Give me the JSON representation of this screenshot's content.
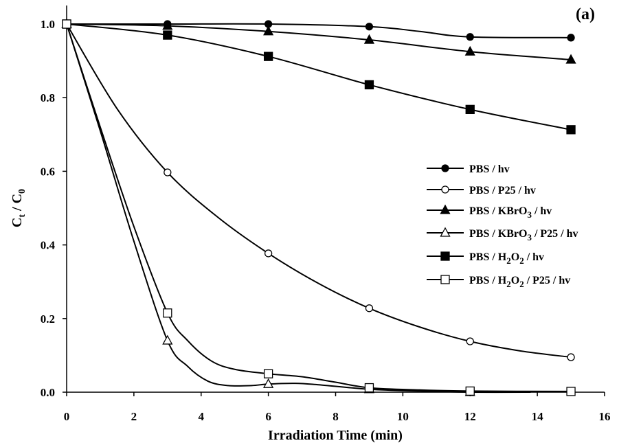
{
  "chart_data": {
    "type": "line",
    "panel_label": "(a)",
    "xlabel": "Irradiation Time (min)",
    "ylabel": {
      "main": "C",
      "sub1": "t",
      "sep": " / C",
      "sub2": "0"
    },
    "xlim": [
      0,
      16
    ],
    "ylim": [
      0.0,
      1.0
    ],
    "xticks": [
      0,
      2,
      4,
      6,
      8,
      10,
      12,
      14,
      16
    ],
    "yticks": [
      0.0,
      0.2,
      0.4,
      0.6,
      0.8,
      1.0
    ],
    "grid": false,
    "legend_position": "center-right",
    "series": [
      {
        "name": "PBS / hv",
        "legend_parts": [
          {
            "t": "PBS / hv"
          }
        ],
        "marker": "filled-circle",
        "x": [
          0,
          3,
          6,
          9,
          12,
          15
        ],
        "y": [
          1.0,
          1.0,
          1.0,
          0.993,
          0.965,
          0.963
        ],
        "curve": [
          [
            0,
            1.0
          ],
          [
            3,
            1.0
          ],
          [
            6,
            1.0
          ],
          [
            9,
            0.993
          ],
          [
            10.5,
            0.98
          ],
          [
            12,
            0.965
          ],
          [
            15,
            0.963
          ]
        ]
      },
      {
        "name": "PBS / P25 / hv",
        "legend_parts": [
          {
            "t": "PBS / P25 / hv"
          }
        ],
        "marker": "open-circle",
        "x": [
          0,
          3,
          6,
          9,
          12,
          15
        ],
        "y": [
          1.0,
          0.597,
          0.377,
          0.228,
          0.138,
          0.095
        ],
        "curve": [
          [
            0,
            1.0
          ],
          [
            1.5,
            0.77
          ],
          [
            3,
            0.597
          ],
          [
            4.5,
            0.475
          ],
          [
            6,
            0.377
          ],
          [
            7.5,
            0.295
          ],
          [
            9,
            0.228
          ],
          [
            10.5,
            0.177
          ],
          [
            12,
            0.138
          ],
          [
            13.5,
            0.112
          ],
          [
            15,
            0.095
          ]
        ]
      },
      {
        "name": "PBS / KBrO3 / hv",
        "legend_parts": [
          {
            "t": "PBS / KBrO"
          },
          {
            "t": "3",
            "sub": true
          },
          {
            "t": " / hv"
          }
        ],
        "marker": "filled-triangle",
        "x": [
          0,
          3,
          6,
          9,
          12,
          15
        ],
        "y": [
          1.0,
          0.995,
          0.98,
          0.957,
          0.925,
          0.903
        ],
        "curve": [
          [
            0,
            1.0
          ],
          [
            3,
            0.995
          ],
          [
            6,
            0.98
          ],
          [
            9,
            0.957
          ],
          [
            12,
            0.925
          ],
          [
            15,
            0.903
          ]
        ]
      },
      {
        "name": "PBS / KBrO3 / P25 / hv",
        "legend_parts": [
          {
            "t": "PBS / KBrO"
          },
          {
            "t": "3",
            "sub": true
          },
          {
            "t": " / P25 / hv"
          }
        ],
        "marker": "open-triangle",
        "x": [
          0,
          3,
          6,
          9,
          12
        ],
        "y": [
          1.0,
          0.14,
          0.022,
          0.008,
          0.0
        ],
        "curve": [
          [
            0,
            1.0
          ],
          [
            1,
            0.71
          ],
          [
            2,
            0.41
          ],
          [
            3,
            0.14
          ],
          [
            3.6,
            0.07
          ],
          [
            4.2,
            0.03
          ],
          [
            4.8,
            0.018
          ],
          [
            5.5,
            0.018
          ],
          [
            6,
            0.022
          ],
          [
            6.8,
            0.024
          ],
          [
            7.5,
            0.02
          ],
          [
            9,
            0.008
          ],
          [
            10.5,
            0.003
          ],
          [
            12,
            0.0
          ],
          [
            13.8,
            0.0
          ]
        ]
      },
      {
        "name": "PBS / H2O2 / hv",
        "legend_parts": [
          {
            "t": "PBS / H"
          },
          {
            "t": "2",
            "sub": true
          },
          {
            "t": "O"
          },
          {
            "t": "2",
            "sub": true
          },
          {
            "t": " / hv"
          }
        ],
        "marker": "filled-square",
        "x": [
          0,
          3,
          6,
          9,
          12,
          15
        ],
        "y": [
          1.0,
          0.97,
          0.912,
          0.835,
          0.768,
          0.713
        ],
        "curve": [
          [
            0,
            1.0
          ],
          [
            3,
            0.97
          ],
          [
            6,
            0.912
          ],
          [
            9,
            0.835
          ],
          [
            12,
            0.768
          ],
          [
            15,
            0.713
          ]
        ]
      },
      {
        "name": "PBS / H2O2 / P25 / hv",
        "legend_parts": [
          {
            "t": "PBS / H"
          },
          {
            "t": "2",
            "sub": true
          },
          {
            "t": "O"
          },
          {
            "t": "2",
            "sub": true
          },
          {
            "t": " / P25 / hv"
          }
        ],
        "marker": "open-square",
        "x": [
          0,
          3,
          6,
          9,
          12,
          15
        ],
        "y": [
          1.0,
          0.215,
          0.05,
          0.012,
          0.003,
          0.002
        ],
        "curve": [
          [
            0,
            1.0
          ],
          [
            1,
            0.72
          ],
          [
            2,
            0.45
          ],
          [
            3,
            0.215
          ],
          [
            3.6,
            0.14
          ],
          [
            4.3,
            0.085
          ],
          [
            5,
            0.062
          ],
          [
            6,
            0.05
          ],
          [
            7,
            0.042
          ],
          [
            8,
            0.027
          ],
          [
            9,
            0.012
          ],
          [
            10.5,
            0.006
          ],
          [
            12,
            0.003
          ],
          [
            15,
            0.002
          ]
        ]
      }
    ]
  }
}
